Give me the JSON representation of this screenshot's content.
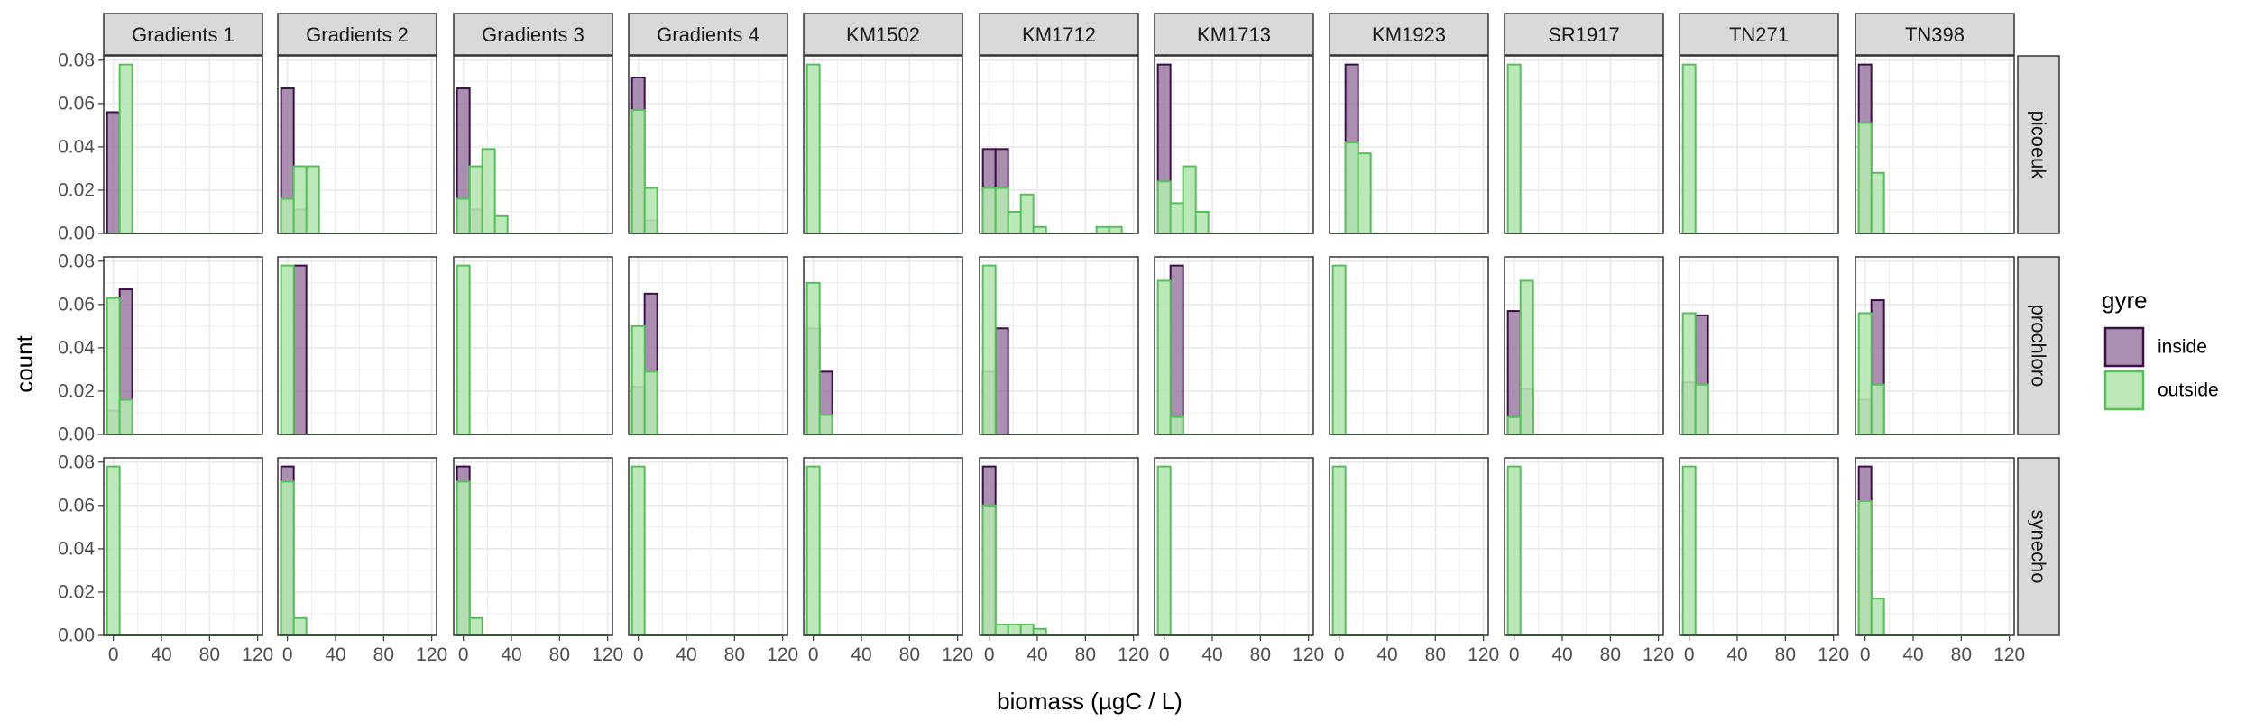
{
  "chart_data": {
    "type": "bar",
    "subtype": "faceted-histogram",
    "xlabel": "biomass (µgC / L)",
    "ylabel": "count",
    "xlim": [
      -8,
      124
    ],
    "ylim": [
      0,
      0.082
    ],
    "x_ticks": [
      0,
      40,
      80,
      120
    ],
    "y_ticks": [
      0.0,
      0.02,
      0.04,
      0.06,
      0.08
    ],
    "y_tick_labels": [
      "0.00",
      "0.02",
      "0.04",
      "0.06",
      "0.08"
    ],
    "bin_width": 10.5,
    "grid": true,
    "columns": [
      "Gradients 1",
      "Gradients 2",
      "Gradients 3",
      "Gradients 4",
      "KM1502",
      "KM1712",
      "KM1713",
      "KM1923",
      "SR1917",
      "TN271",
      "TN398"
    ],
    "rows": [
      "picoeuk",
      "prochloro",
      "synecho"
    ],
    "legend": {
      "title": "gyre",
      "position": "right",
      "entries": [
        {
          "name": "inside",
          "fill": "#9b7ba3",
          "stroke": "#3d0f49"
        },
        {
          "name": "outside",
          "fill": "#b6e5b3",
          "stroke": "#57c05a"
        }
      ]
    },
    "series": [
      {
        "name": "inside",
        "values": [
          [
            [
              0.056
            ],
            [
              0.067,
              0.011
            ],
            [
              0.067,
              0.011
            ],
            [
              0.072,
              0.006
            ],
            [],
            [
              0.039,
              0.039
            ],
            [
              0.078
            ],
            [
              0,
              0.078
            ],
            [],
            [],
            [
              0.078
            ]
          ],
          [
            [
              0.011,
              0.067
            ],
            [
              0,
              0.078
            ],
            [],
            [
              0.022,
              0.065
            ],
            [
              0.049,
              0.029
            ],
            [
              0.029,
              0.049
            ],
            [
              0,
              0.078
            ],
            [],
            [
              0.057,
              0.021
            ],
            [
              0.024,
              0.055
            ],
            [
              0.016,
              0.062
            ]
          ],
          [
            [],
            [
              0.078
            ],
            [
              0.078
            ],
            [],
            [],
            [
              0.078
            ],
            [],
            [],
            [],
            [],
            [
              0.078
            ]
          ]
        ]
      },
      {
        "name": "outside",
        "values": [
          [
            [
              0,
              0.078
            ],
            [
              0.016,
              0.031,
              0.031
            ],
            [
              0.016,
              0.031,
              0.039,
              0.008
            ],
            [
              0.057,
              0.021
            ],
            [
              0.078
            ],
            [
              0.021,
              0.021,
              0.01,
              0.018,
              0.003,
              0,
              0,
              0,
              0,
              0.003,
              0.003
            ],
            [
              0.024,
              0.014,
              0.031,
              0.01
            ],
            [
              0,
              0.042,
              0.037
            ],
            [
              0.078
            ],
            [
              0.078
            ],
            [
              0.051,
              0.028
            ]
          ],
          [
            [
              0.063,
              0.016
            ],
            [
              0.078
            ],
            [
              0.078
            ],
            [
              0.05,
              0.029
            ],
            [
              0.07,
              0.009
            ],
            [
              0.078
            ],
            [
              0.071,
              0.008
            ],
            [
              0.078
            ],
            [
              0.008,
              0.071
            ],
            [
              0.056,
              0.023
            ],
            [
              0.056,
              0.023
            ]
          ],
          [
            [
              0.078
            ],
            [
              0.071,
              0.008
            ],
            [
              0.071,
              0.008
            ],
            [
              0.078
            ],
            [
              0.078
            ],
            [
              0.06,
              0.005,
              0.005,
              0.005,
              0.003
            ],
            [
              0.078
            ],
            [
              0.078
            ],
            [
              0.078
            ],
            [
              0.078
            ],
            [
              0.062,
              0.017
            ]
          ]
        ]
      }
    ]
  }
}
